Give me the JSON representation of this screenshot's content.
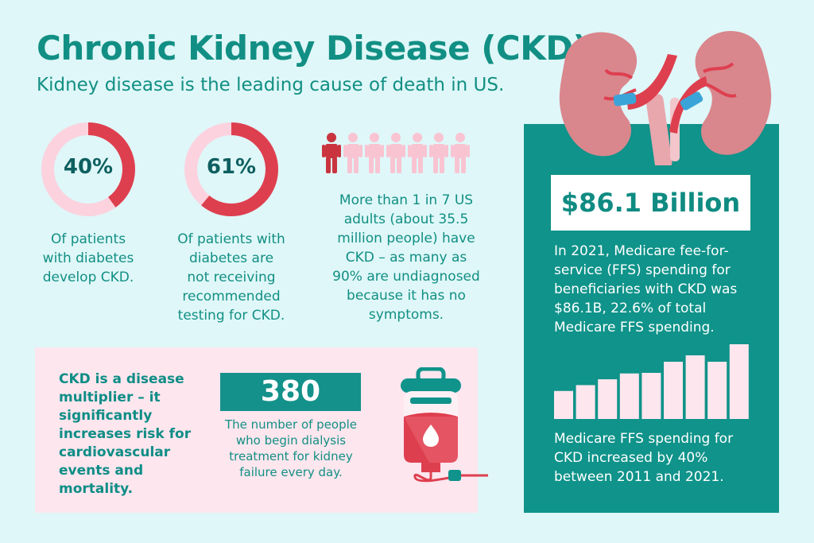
{
  "header": {
    "title": "Chronic Kidney Disease (CKD)",
    "subtitle": "Kidney disease is the leading cause of death in US."
  },
  "stats": [
    {
      "value": "40%",
      "percent": 40,
      "text": [
        "Of patients",
        "with diabetes",
        "develop CKD."
      ]
    },
    {
      "value": "61%",
      "percent": 61,
      "text": [
        "Of patients with",
        "diabetes are",
        "not receiving",
        "recommended",
        "testing for CKD."
      ]
    }
  ],
  "people": {
    "highlighted": 1,
    "total": 7,
    "text": [
      "More than 1 in 7 US",
      "adults (about 35.5",
      "million people) have",
      "CKD – as many as",
      "90% are undiagnosed",
      "because it has no",
      "symptoms."
    ]
  },
  "multiplier": {
    "text": [
      "CKD is a disease",
      "multiplier – it",
      "significantly",
      "increases risk for",
      "cardiovascular",
      "events and",
      "mortality."
    ]
  },
  "dialysis": {
    "value": "380",
    "text": [
      "The number of people",
      "who begin dialysis",
      "treatment for kidney",
      "failure every day."
    ]
  },
  "spending": {
    "value": "$86.1 Billion",
    "text": [
      "In 2021, Medicare fee-for-",
      "service (FFS) spending for",
      "beneficiaries with CKD was",
      "$86.1B, 22.6% of total",
      "Medicare FFS spending."
    ],
    "bar_values": [
      48,
      58,
      68,
      78,
      79,
      98,
      109,
      98,
      128
    ],
    "increase_text": [
      "Medicare FFS spending for",
      "CKD increased by 40%",
      "between 2011 and 2021."
    ]
  },
  "colors": {
    "teal": "#0f938a",
    "red": "#de3f4f",
    "pink": "#fcd2df",
    "light_pink": "#fde6ee"
  }
}
